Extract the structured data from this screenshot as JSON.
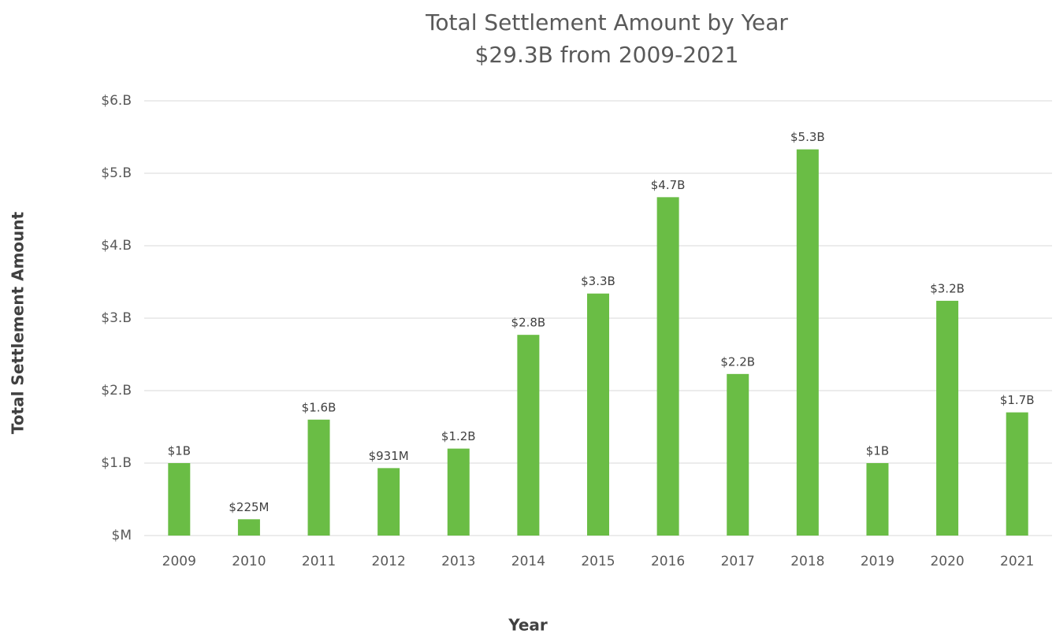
{
  "chart_data": {
    "type": "bar",
    "title": "Total Settlement Amount by Year",
    "subtitle": "$29.3B from 2009-2021",
    "x_label": "Year",
    "y_label": "Total Settlement Amount",
    "categories": [
      "2009",
      "2010",
      "2011",
      "2012",
      "2013",
      "2014",
      "2015",
      "2016",
      "2017",
      "2018",
      "2019",
      "2020",
      "2021"
    ],
    "values": [
      1.0,
      0.225,
      1.6,
      0.931,
      1.2,
      2.77,
      3.34,
      4.67,
      2.23,
      5.33,
      1.0,
      3.24,
      1.7
    ],
    "value_labels": [
      "$1B",
      "$225M",
      "$1.6B",
      "$931M",
      "$1.2B",
      "$2.8B",
      "$3.3B",
      "$4.7B",
      "$2.2B",
      "$5.3B",
      "$1B",
      "$3.2B",
      "$1.7B"
    ],
    "color": "#6abd45",
    "ylim": [
      0,
      6
    ],
    "yticks": [
      {
        "value": 0,
        "label": "$M"
      },
      {
        "value": 1,
        "label": "$1.B"
      },
      {
        "value": 2,
        "label": "$2.B"
      },
      {
        "value": 3,
        "label": "$3.B"
      },
      {
        "value": 4,
        "label": "$4.B"
      },
      {
        "value": 5,
        "label": "$5.B"
      },
      {
        "value": 6,
        "label": "$6.B"
      }
    ],
    "grid": true
  }
}
